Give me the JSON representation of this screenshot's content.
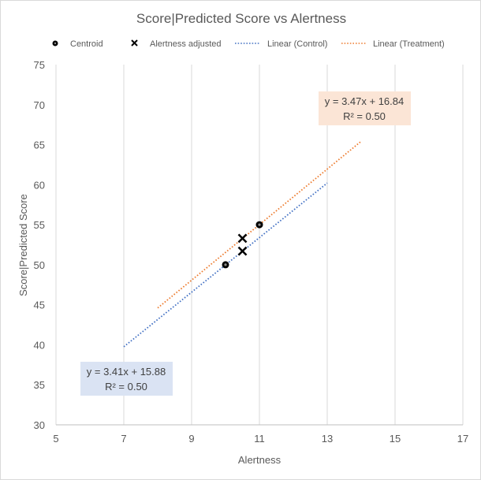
{
  "chart_data": {
    "type": "scatter",
    "title": "Score|Predicted Score vs Alertness",
    "xlabel": "Alertness",
    "ylabel": "Score|Predicted Score",
    "xlim": [
      5,
      17
    ],
    "ylim": [
      30,
      75
    ],
    "x_ticks": [
      5,
      7,
      9,
      11,
      13,
      15,
      17
    ],
    "y_ticks": [
      30,
      35,
      40,
      45,
      50,
      55,
      60,
      65,
      70,
      75
    ],
    "grid": "vertical",
    "legend_position": "top",
    "legend": [
      {
        "label": "Centroid",
        "marker": "circle"
      },
      {
        "label": "Alertness adjusted",
        "marker": "x"
      },
      {
        "label": "Linear (Control)",
        "marker": "dotted-line",
        "color": "#4472c4"
      },
      {
        "label": "Linear (Treatment)",
        "marker": "dotted-line",
        "color": "#ed7d31"
      }
    ],
    "series": [
      {
        "name": "Centroid",
        "marker": "circle",
        "points": [
          {
            "x": 10,
            "y": 50
          },
          {
            "x": 11,
            "y": 55
          }
        ]
      },
      {
        "name": "Alertness adjusted",
        "marker": "x",
        "points": [
          {
            "x": 10.5,
            "y": 51.7
          },
          {
            "x": 10.5,
            "y": 53.3
          }
        ]
      }
    ],
    "trendlines": [
      {
        "name": "Linear (Control)",
        "color": "#4472c4",
        "slope": 3.41,
        "intercept": 15.88,
        "x_range": [
          7,
          13
        ],
        "equation": "y = 3.41x + 15.88",
        "r2": "R² = 0.50",
        "label_bg": "#dae3f3"
      },
      {
        "name": "Linear (Treatment)",
        "color": "#ed7d31",
        "slope": 3.47,
        "intercept": 16.84,
        "x_range": [
          8,
          14
        ],
        "equation": "y = 3.47x + 16.84",
        "r2": "R² = 0.50",
        "label_bg": "#fbe5d6"
      }
    ]
  }
}
